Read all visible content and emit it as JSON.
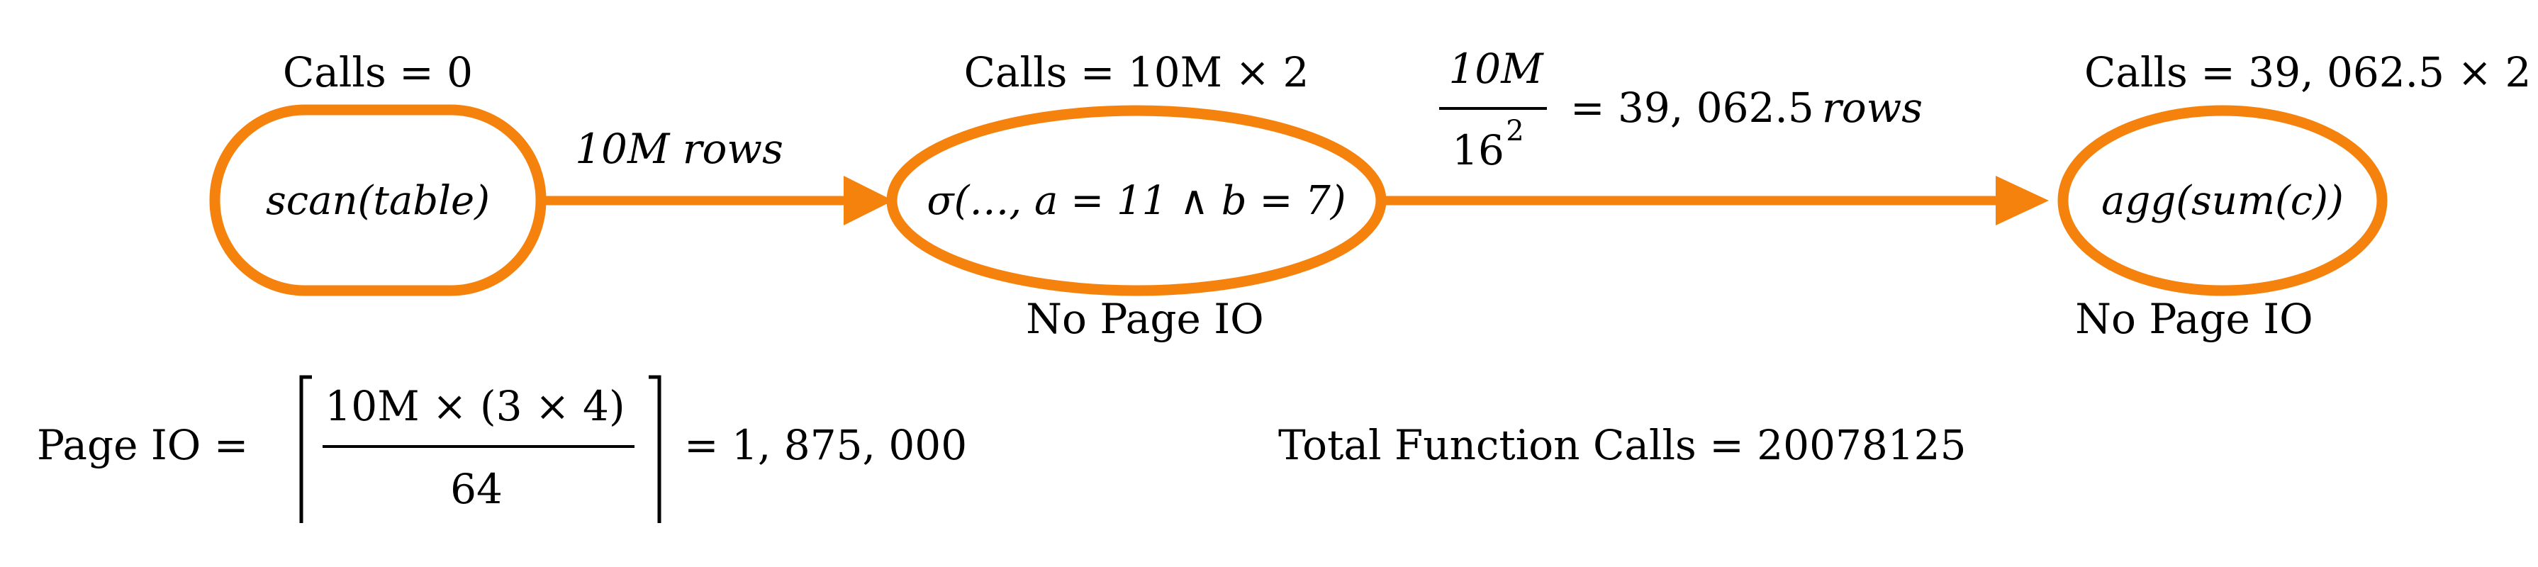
{
  "nodes": {
    "scan": {
      "calls_label": "Calls = 0",
      "label": "scan(table)"
    },
    "select": {
      "calls_label": "Calls = 10M × 2",
      "label": "σ(…, a = 11 ∧ b = 7)",
      "io_note": "No Page IO"
    },
    "agg": {
      "calls_label": "Calls = 39, 062.5 × 2",
      "label": "agg(sum(c))",
      "io_note": "No Page IO"
    }
  },
  "edges": {
    "scan_to_select": {
      "label": "10M rows"
    },
    "select_to_agg": {
      "frac_num": "10M",
      "frac_den": "16",
      "frac_den_exp": "2",
      "result": "= 39, 062.5",
      "unit": "rows"
    }
  },
  "page_io": {
    "prefix": "Page IO =",
    "numerator": "10M × (3 × 4)",
    "denominator": "64",
    "result": "= 1, 875, 000"
  },
  "total": {
    "label": "Total Function Calls = 20078125"
  },
  "colors": {
    "node_stroke": "#f5820d",
    "text": "#000000",
    "background": "#ffffff"
  }
}
